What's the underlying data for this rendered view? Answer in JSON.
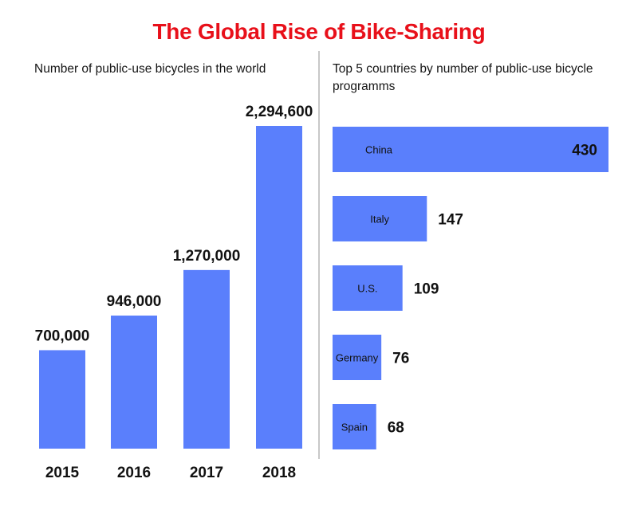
{
  "title": "The Global Rise of Bike-Sharing",
  "colors": {
    "title": "#e8101a",
    "bar": "#5a7ffc",
    "divider": "#c8c8c8"
  },
  "chart_data": [
    {
      "type": "bar",
      "orientation": "vertical",
      "title": "Number of public-use bicycles in the world",
      "categories": [
        "2015",
        "2016",
        "2017",
        "2018"
      ],
      "values": [
        700000,
        946000,
        1270000,
        2294600
      ],
      "value_labels": [
        "700,000",
        "946,000",
        "1,270,000",
        "2,294,600"
      ],
      "xlabel": "",
      "ylabel": "",
      "ylim": [
        0,
        2294600
      ],
      "grid": false
    },
    {
      "type": "bar",
      "orientation": "horizontal",
      "title": "Top 5 countries by number of public-use bicycle programms",
      "categories": [
        "China",
        "Italy",
        "U.S.",
        "Germany",
        "Spain"
      ],
      "values": [
        430,
        147,
        109,
        76,
        68
      ],
      "value_labels": [
        "430",
        "147",
        "109",
        "76",
        "68"
      ],
      "xlabel": "",
      "ylabel": "",
      "xlim": [
        0,
        430
      ],
      "grid": false
    }
  ]
}
